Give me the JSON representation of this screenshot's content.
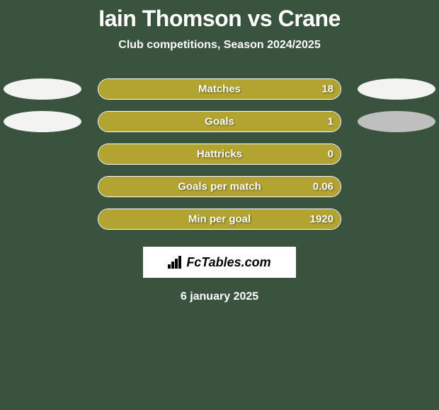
{
  "header": {
    "title": "Iain Thomson vs Crane",
    "subtitle": "Club competitions, Season 2024/2025"
  },
  "colors": {
    "background": "#3a533e",
    "barFill": "#b3a432",
    "barBorder": "#ffffff",
    "text": "#ffffff",
    "ellipseLight": "#f3f3f1",
    "ellipseGray": "#bfbfbf",
    "logoBg": "#ffffff"
  },
  "stats": [
    {
      "label": "Matches",
      "value": "18",
      "fillPercent": 100
    },
    {
      "label": "Goals",
      "value": "1",
      "fillPercent": 100
    },
    {
      "label": "Hattricks",
      "value": "0",
      "fillPercent": 100
    },
    {
      "label": "Goals per match",
      "value": "0.06",
      "fillPercent": 100
    },
    {
      "label": "Min per goal",
      "value": "1920",
      "fillPercent": 100
    }
  ],
  "ellipses": [
    {
      "row": 0,
      "side": "left",
      "color": "#f3f3f1"
    },
    {
      "row": 0,
      "side": "right",
      "color": "#f3f3f1"
    },
    {
      "row": 1,
      "side": "left",
      "color": "#f3f3f1"
    },
    {
      "row": 1,
      "side": "right",
      "color": "#bfbfbf"
    }
  ],
  "footer": {
    "logoText": "FcTables.com",
    "date": "6 january 2025"
  }
}
